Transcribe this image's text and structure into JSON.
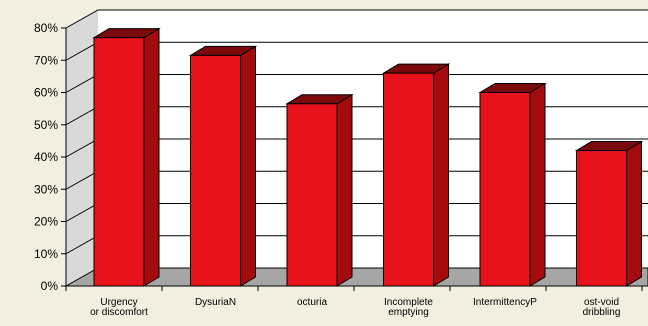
{
  "chart_data": {
    "type": "bar",
    "categories": [
      [
        "Urgency",
        "or discomfort"
      ],
      [
        "DysuriaN"
      ],
      [
        "octuria"
      ],
      [
        "Incomplete",
        "emptying"
      ],
      [
        "IntermittencyP"
      ],
      [
        "ost-void",
        "dribbling"
      ]
    ],
    "values": [
      77,
      71.5,
      56.5,
      66,
      60,
      42
    ],
    "ylim": [
      0,
      80
    ],
    "yticks": [
      "0%",
      "10%",
      "20%",
      "30%",
      "40%",
      "50%",
      "60%",
      "70%",
      "80%"
    ],
    "grid": true,
    "legend": "none",
    "colors": {
      "bar_front": "#e8131a",
      "bar_side": "#a40b0f",
      "bar_top": "#7a0a0c",
      "background": "#f2eee0",
      "back_wall": "#ffffff",
      "floor": "#a6a6a6"
    }
  }
}
